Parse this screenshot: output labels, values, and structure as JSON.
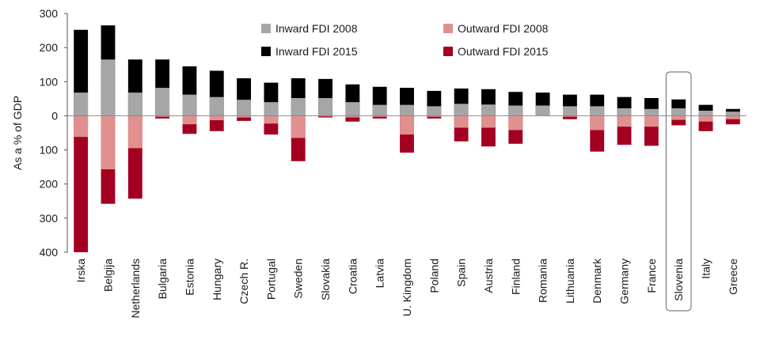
{
  "chart_data": {
    "type": "bar",
    "stacked_diverging": true,
    "ylabel": "As a % of GDP",
    "yaxis": {
      "range": [
        -400,
        300
      ],
      "ticks": [
        300,
        200,
        100,
        0,
        -100,
        -200,
        -300,
        -400
      ],
      "tick_labels": [
        "300",
        "200",
        "100",
        "0",
        "100",
        "200",
        "300",
        "400"
      ]
    },
    "grid": false,
    "legend_position": "top-center",
    "highlight_category": "Slovenia",
    "categories": [
      "Irska",
      "Belgija",
      "Netherlands",
      "Bulgaria",
      "Estonia",
      "Hungary",
      "Czech R.",
      "Portugal",
      "Sweden",
      "Slovakia",
      "Croatia",
      "Latvia",
      "U. Kingdom",
      "Poland",
      "Spain",
      "Austria",
      "Finland",
      "Romania",
      "Lithuania",
      "Denmark",
      "Germany",
      "France",
      "Slovenia",
      "Italy",
      "Greece"
    ],
    "series": [
      {
        "name": "Inward FDI 2008",
        "color": "#a6a6a6",
        "values": [
          68,
          165,
          68,
          82,
          62,
          55,
          47,
          40,
          52,
          52,
          40,
          32,
          32,
          28,
          35,
          33,
          30,
          30,
          28,
          28,
          22,
          20,
          22,
          15,
          12
        ]
      },
      {
        "name": "Inward FDI 2015",
        "color": "#000000",
        "values": [
          252,
          265,
          165,
          165,
          145,
          132,
          110,
          97,
          110,
          108,
          92,
          85,
          82,
          73,
          80,
          78,
          70,
          68,
          62,
          62,
          55,
          52,
          48,
          32,
          20
        ]
      },
      {
        "name": "Outward FDI 2008",
        "color": "#e0908e",
        "values": [
          -62,
          -157,
          -95,
          -3,
          -25,
          -13,
          -5,
          -23,
          -65,
          -2,
          -5,
          -3,
          -55,
          -3,
          -35,
          -35,
          -42,
          0,
          -3,
          -42,
          -32,
          -32,
          -12,
          -17,
          -10
        ]
      },
      {
        "name": "Outward FDI 2015",
        "color": "#a30021",
        "values": [
          -400,
          -258,
          -243,
          -8,
          -53,
          -45,
          -15,
          -55,
          -133,
          -5,
          -17,
          -8,
          -108,
          -8,
          -75,
          -90,
          -82,
          0,
          -10,
          -105,
          -85,
          -88,
          -28,
          -45,
          -25
        ]
      }
    ]
  }
}
